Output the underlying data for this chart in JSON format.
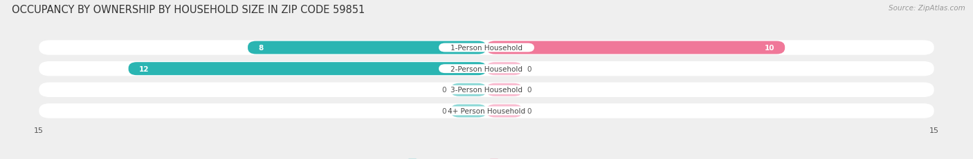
{
  "title": "OCCUPANCY BY OWNERSHIP BY HOUSEHOLD SIZE IN ZIP CODE 59851",
  "source": "Source: ZipAtlas.com",
  "categories": [
    "1-Person Household",
    "2-Person Household",
    "3-Person Household",
    "4+ Person Household"
  ],
  "owner_values": [
    8,
    12,
    0,
    0
  ],
  "renter_values": [
    10,
    0,
    0,
    0
  ],
  "owner_color": "#2ab5b2",
  "owner_color_light": "#8dd8d6",
  "renter_color": "#f07899",
  "renter_color_light": "#f9bcd0",
  "axis_max": 15,
  "background_color": "#efefef",
  "bar_bg_color": "#ffffff",
  "title_fontsize": 10.5,
  "source_fontsize": 7.5,
  "label_fontsize": 7.5,
  "value_fontsize": 7.5,
  "tick_fontsize": 8,
  "legend_fontsize": 8
}
